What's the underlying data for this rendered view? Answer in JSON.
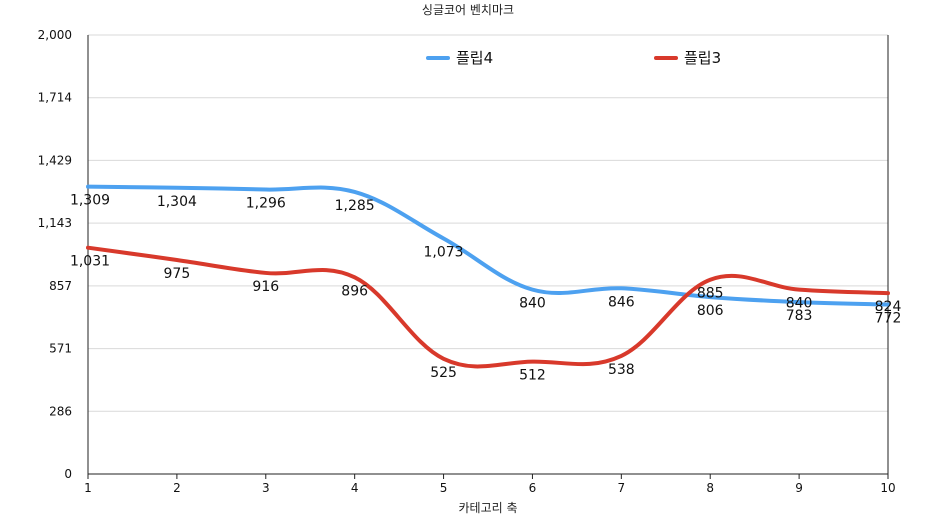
{
  "chart_data": {
    "type": "line",
    "title": "싱글코어 벤치마크",
    "xlabel": "카테고리 축",
    "ylabel": "",
    "categories": [
      "1",
      "2",
      "3",
      "4",
      "5",
      "6",
      "7",
      "8",
      "9",
      "10"
    ],
    "yticks": [
      "0",
      "286",
      "571",
      "857",
      "1,143",
      "1,429",
      "1,714",
      "2,000"
    ],
    "ylim": [
      0,
      2000
    ],
    "grid": true,
    "legend_position": "top",
    "series": [
      {
        "name": "플립4",
        "color": "#4da1f0",
        "values": [
          1309,
          1304,
          1296,
          1285,
          1073,
          840,
          846,
          806,
          783,
          772
        ],
        "labels": [
          "1,309",
          "1,304",
          "1,296",
          "1,285",
          "1,073",
          "840",
          "846",
          "806",
          "783",
          "772"
        ]
      },
      {
        "name": "플립3",
        "color": "#d8392b",
        "values": [
          1031,
          975,
          916,
          896,
          525,
          512,
          538,
          885,
          840,
          824
        ],
        "labels": [
          "1,031",
          "975",
          "916",
          "896",
          "525",
          "512",
          "538",
          "885",
          "840",
          "824"
        ]
      }
    ]
  }
}
